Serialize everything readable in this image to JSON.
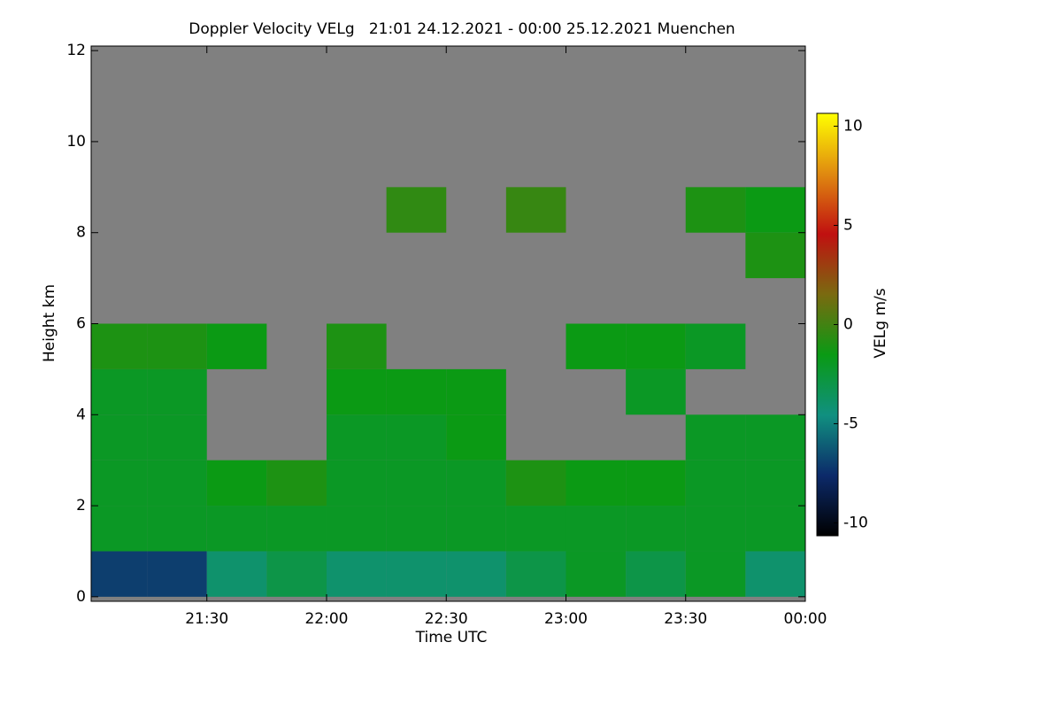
{
  "chart_data": {
    "type": "heatmap",
    "title": "Doppler Velocity VELg   21:01 24.12.2021 - 00:00 25.12.2021 Muenchen",
    "x_label": "Time UTC",
    "y_label": "Height km",
    "colorbar_label": "VELg m/s",
    "x_edges": [
      21.0167,
      21.25,
      21.5,
      21.75,
      22,
      22.25,
      22.5,
      22.75,
      23,
      23.25,
      23.5,
      23.75,
      24
    ],
    "y_edges": [
      0,
      1,
      2,
      3,
      4,
      5,
      6,
      7,
      8,
      9,
      10,
      11,
      12
    ],
    "values": [
      [
        -7,
        -7,
        -4,
        -3,
        -4,
        -4,
        -4,
        -3,
        -2,
        -3,
        -2,
        -4
      ],
      [
        -2,
        -2,
        -2,
        -2,
        -2,
        -2,
        -2,
        -2,
        -2,
        -2,
        -2,
        -2
      ],
      [
        -2,
        -2,
        -1.5,
        -1,
        -2,
        -2,
        -2,
        -1,
        -1.5,
        -1.5,
        -2,
        -2
      ],
      [
        -2,
        -2,
        null,
        null,
        -2,
        -2,
        -1.5,
        null,
        null,
        null,
        -2,
        -2
      ],
      [
        -2,
        -2,
        null,
        null,
        -1.5,
        -1.5,
        -1.5,
        null,
        null,
        -2,
        null,
        null
      ],
      [
        -1,
        -1,
        -1.5,
        null,
        -1,
        null,
        null,
        null,
        -1.5,
        -1.5,
        -2,
        null
      ],
      [
        null,
        null,
        null,
        null,
        null,
        null,
        null,
        null,
        null,
        null,
        null,
        null
      ],
      [
        null,
        null,
        null,
        null,
        null,
        null,
        null,
        null,
        null,
        null,
        null,
        -1
      ],
      [
        null,
        null,
        null,
        null,
        null,
        -0.5,
        null,
        -0.3,
        null,
        null,
        -1,
        -1.5
      ],
      [
        null,
        null,
        null,
        null,
        null,
        null,
        null,
        null,
        null,
        null,
        null,
        null
      ],
      [
        null,
        null,
        null,
        null,
        null,
        null,
        null,
        null,
        null,
        null,
        null,
        null
      ],
      [
        null,
        null,
        null,
        null,
        null,
        null,
        null,
        null,
        null,
        null,
        null,
        null
      ]
    ],
    "xlim": [
      21.0167,
      24
    ],
    "ylim": [
      -0.1,
      12.1
    ],
    "xticks": [
      {
        "value": 21.5,
        "label": "21:30"
      },
      {
        "value": 22,
        "label": "22:00"
      },
      {
        "value": 22.5,
        "label": "22:30"
      },
      {
        "value": 23,
        "label": "23:00"
      },
      {
        "value": 23.5,
        "label": "23:30"
      },
      {
        "value": 24,
        "label": "00:00"
      }
    ],
    "yticks": [
      0,
      2,
      4,
      6,
      8,
      10,
      12
    ],
    "clim": [
      -10.65,
      10.65
    ],
    "cticks": [
      -10,
      -5,
      0,
      5,
      10
    ],
    "colormap": [
      "#000000",
      "#0c2a6a",
      "#109080",
      "#0a9a14",
      "#7a6a10",
      "#c01010",
      "#e08a10",
      "#ffff00"
    ],
    "missing_color": "#808080"
  }
}
